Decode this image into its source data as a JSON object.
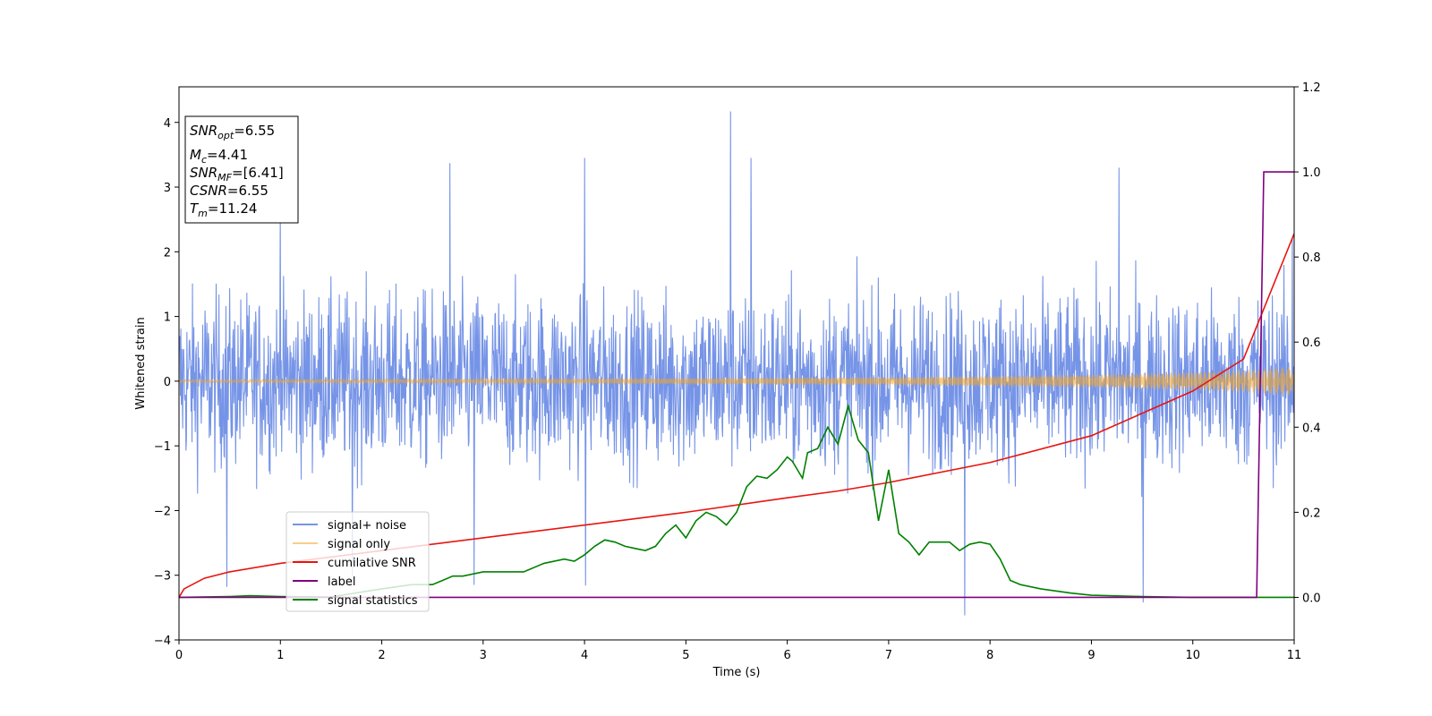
{
  "chart_data": {
    "type": "line",
    "xlabel": "Time (s)",
    "ylabel": "Whitened strain",
    "xlim": [
      0,
      11
    ],
    "ylim": [
      -4,
      4.55
    ],
    "y2lim": [
      -0.1,
      1.2
    ],
    "xticks": [
      "0",
      "1",
      "2",
      "3",
      "4",
      "5",
      "6",
      "7",
      "8",
      "9",
      "10",
      "11"
    ],
    "yticks": [
      "−4",
      "−3",
      "−2",
      "−1",
      "0",
      "1",
      "2",
      "3",
      "4"
    ],
    "y2ticks": [
      "0.0",
      "0.2",
      "0.4",
      "0.6",
      "0.8",
      "1.0",
      "1.2"
    ],
    "legend_position": "lower-left",
    "legend": [
      "signal+ noise",
      "signal only",
      "cumilative SNR",
      "label",
      "signal statistics"
    ],
    "info_box": {
      "snr_opt": {
        "main": "SNR",
        "sub": "opt",
        "value": "=6.55"
      },
      "mc": {
        "main": "M",
        "sub": "c",
        "value": "=4.41"
      },
      "snr_mf": {
        "main": "SNR",
        "sub": "MF",
        "value": "=[6.41]"
      },
      "csnr": {
        "main": "CSNR",
        "value": "=6.55"
      },
      "tm": {
        "main": "T",
        "sub": "m",
        "value": "=11.24"
      }
    },
    "series": [
      {
        "name": "signal+ noise",
        "color": "#6f8ee6",
        "axis": "left",
        "envelope_typical_amplitude": 2.2,
        "peaks": [
          [
            5.44,
            4.17
          ],
          [
            5.64,
            3.45
          ],
          [
            4.0,
            3.45
          ],
          [
            2.67,
            3.37
          ],
          [
            9.27,
            3.3
          ],
          [
            1.0,
            2.75
          ],
          [
            10.98,
            2.2
          ],
          [
            7.75,
            -3.62
          ],
          [
            9.51,
            -3.42
          ],
          [
            2.91,
            -3.15
          ],
          [
            4.01,
            -3.16
          ],
          [
            0.47,
            -3.18
          ],
          [
            1.71,
            -3.02
          ]
        ]
      },
      {
        "name": "signal only",
        "color": "#f5a623",
        "axis": "left",
        "amplitude": [
          [
            0,
            0.02
          ],
          [
            4,
            0.035
          ],
          [
            7,
            0.06
          ],
          [
            9,
            0.1
          ],
          [
            10,
            0.14
          ],
          [
            10.5,
            0.17
          ],
          [
            11,
            0.22
          ]
        ]
      },
      {
        "name": "cumilative SNR",
        "color": "#e8140f",
        "axis": "right",
        "x": [
          0,
          0.05,
          0.25,
          0.5,
          1,
          2,
          3,
          4,
          5,
          6,
          6.5,
          7,
          8,
          9,
          10,
          10.5,
          11
        ],
        "y": [
          0.0,
          0.02,
          0.045,
          0.06,
          0.08,
          0.11,
          0.14,
          0.17,
          0.2,
          0.234,
          0.25,
          0.27,
          0.317,
          0.38,
          0.485,
          0.56,
          0.855
        ]
      },
      {
        "name": "label",
        "color": "#800080",
        "axis": "right",
        "x": [
          0,
          10.63,
          10.7,
          11
        ],
        "y": [
          0.0,
          0.0,
          1.0,
          1.0
        ]
      },
      {
        "name": "signal statistics",
        "color": "#008000",
        "axis": "right",
        "x": [
          0,
          0.5,
          0.7,
          1,
          1.5,
          2,
          2.3,
          2.5,
          2.6,
          2.7,
          2.8,
          3.0,
          3.2,
          3.3,
          3.4,
          3.5,
          3.6,
          3.8,
          3.9,
          4.0,
          4.1,
          4.2,
          4.3,
          4.4,
          4.5,
          4.6,
          4.7,
          4.8,
          4.9,
          5.0,
          5.1,
          5.2,
          5.3,
          5.4,
          5.5,
          5.6,
          5.7,
          5.8,
          5.9,
          6.0,
          6.05,
          6.1,
          6.15,
          6.2,
          6.3,
          6.4,
          6.5,
          6.6,
          6.7,
          6.8,
          6.9,
          7.0,
          7.1,
          7.2,
          7.3,
          7.4,
          7.5,
          7.6,
          7.7,
          7.8,
          7.9,
          8.0,
          8.1,
          8.2,
          8.3,
          8.5,
          8.8,
          9.0,
          9.5,
          10.0,
          11.0
        ],
        "y": [
          0.0,
          0.002,
          0.004,
          0.002,
          0.001,
          0.02,
          0.03,
          0.03,
          0.04,
          0.05,
          0.05,
          0.06,
          0.06,
          0.06,
          0.06,
          0.07,
          0.08,
          0.09,
          0.085,
          0.1,
          0.12,
          0.135,
          0.13,
          0.12,
          0.115,
          0.11,
          0.12,
          0.15,
          0.17,
          0.14,
          0.18,
          0.2,
          0.19,
          0.17,
          0.2,
          0.26,
          0.285,
          0.28,
          0.3,
          0.33,
          0.32,
          0.3,
          0.28,
          0.34,
          0.35,
          0.4,
          0.36,
          0.45,
          0.37,
          0.34,
          0.18,
          0.3,
          0.15,
          0.13,
          0.1,
          0.13,
          0.13,
          0.13,
          0.11,
          0.125,
          0.13,
          0.125,
          0.09,
          0.04,
          0.03,
          0.02,
          0.01,
          0.005,
          0.002,
          0.0,
          0.0
        ]
      }
    ]
  }
}
